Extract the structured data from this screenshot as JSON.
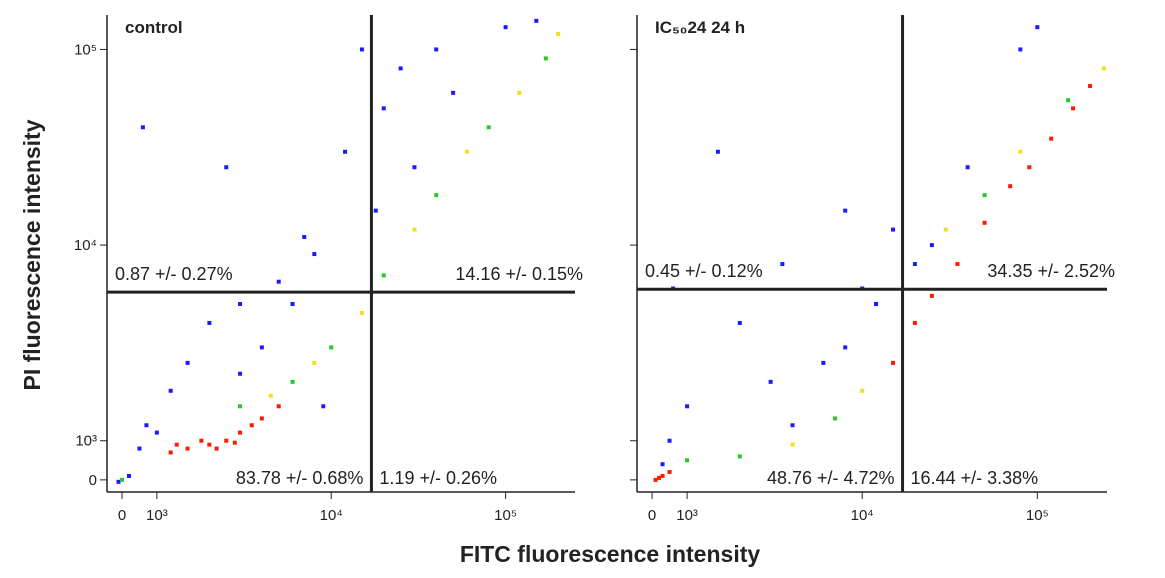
{
  "figure": {
    "xlabel": "FITC fluorescence intensity",
    "ylabel": "PI fluorescence intensity"
  },
  "chart_data": [
    {
      "type": "scatter",
      "title": "control",
      "xlim": [
        -430,
        250000
      ],
      "ylim": [
        -310,
        150000
      ],
      "scale": "logicle",
      "xticks": [
        {
          "value": 0,
          "label": "0"
        },
        {
          "value": 1000,
          "label": "10³"
        },
        {
          "value": 10000,
          "label": "10⁴"
        },
        {
          "value": 100000,
          "label": "10⁵"
        }
      ],
      "yticks": [
        {
          "value": 0,
          "label": "0"
        },
        {
          "value": 1000,
          "label": "10³"
        },
        {
          "value": 10000,
          "label": "10⁴"
        },
        {
          "value": 100000,
          "label": "10⁵"
        }
      ],
      "gate": {
        "x": 17000,
        "y": 5750
      },
      "quadrants": {
        "upper_left": "0.87 +/- 0.27%",
        "upper_right": "14.16 +/- 0.15%",
        "lower_left": "83.78 +/- 0.68%",
        "lower_right": "1.19 +/- 0.26%"
      },
      "series": [
        {
          "color": "#1a1aff",
          "x": [
            700,
            1500,
            2000,
            1200,
            3000,
            4000,
            6000,
            8000,
            2500,
            600,
            12000,
            20000,
            25000,
            40000,
            50000,
            100000,
            150000,
            18000,
            9000,
            1000,
            5000,
            3000,
            15000,
            30000,
            500,
            -100,
            200,
            7000
          ],
          "y": [
            1200,
            2500,
            4000,
            1800,
            2200,
            3000,
            5000,
            9000,
            25000,
            40000,
            30000,
            50000,
            80000,
            100000,
            60000,
            130000,
            140000,
            15000,
            1500,
            1100,
            6500,
            5000,
            100000,
            25000,
            800,
            -50,
            100,
            11000
          ]
        },
        {
          "color": "#22cc22",
          "x": [
            6000,
            10000,
            20000,
            40000,
            80000,
            170000,
            0,
            3000
          ],
          "y": [
            2000,
            3000,
            7000,
            18000,
            40000,
            90000,
            0,
            1500
          ]
        },
        {
          "color": "#f0e020",
          "x": [
            8000,
            15000,
            30000,
            60000,
            120000,
            200000,
            4500
          ],
          "y": [
            2500,
            4500,
            12000,
            30000,
            60000,
            120000,
            1700
          ]
        },
        {
          "color": "#ff1a00",
          "x": [
            1500,
            2000,
            2500,
            3000,
            4000,
            1200,
            1800,
            3500,
            2200,
            5000,
            1300,
            2800
          ],
          "y": [
            800,
            900,
            1000,
            1100,
            1300,
            700,
            1000,
            1200,
            800,
            1500,
            900,
            950
          ]
        }
      ]
    },
    {
      "type": "scatter",
      "title": "IC₅₀24 24 h",
      "xlim": [
        -430,
        250000
      ],
      "ylim": [
        -310,
        150000
      ],
      "scale": "logicle",
      "xticks": [
        {
          "value": 0,
          "label": "0"
        },
        {
          "value": 1000,
          "label": "10³"
        },
        {
          "value": 10000,
          "label": "10⁴"
        },
        {
          "value": 100000,
          "label": "10⁵"
        }
      ],
      "gate": {
        "x": 17000,
        "y": 5950
      },
      "quadrants": {
        "upper_left": "0.45 +/- 0.12%",
        "upper_right": "34.35 +/- 2.52%",
        "lower_left": "48.76 +/- 4.72%",
        "lower_right": "16.44 +/- 3.38%"
      },
      "series": [
        {
          "color": "#1a1aff",
          "x": [
            1000,
            3000,
            500,
            8000,
            12000,
            20000,
            25000,
            2000,
            600,
            1500,
            3500,
            10000,
            8000,
            100000,
            80000,
            40000,
            4000,
            15000,
            300,
            6000
          ],
          "y": [
            1500,
            2000,
            1000,
            3000,
            5000,
            8000,
            10000,
            4000,
            6000,
            30000,
            8000,
            6000,
            15000,
            130000,
            100000,
            25000,
            1200,
            12000,
            400,
            2500
          ]
        },
        {
          "color": "#22cc22",
          "x": [
            2000,
            7000,
            50000,
            150000,
            1000
          ],
          "y": [
            600,
            1300,
            18000,
            55000,
            500
          ]
        },
        {
          "color": "#f0e020",
          "x": [
            4000,
            10000,
            30000,
            80000,
            240000
          ],
          "y": [
            900,
            1800,
            12000,
            30000,
            80000
          ]
        },
        {
          "color": "#ff1a00",
          "x": [
            100,
            300,
            500,
            200,
            15000,
            20000,
            25000,
            35000,
            50000,
            70000,
            90000,
            120000,
            160000,
            200000
          ],
          "y": [
            0,
            100,
            200,
            50,
            2500,
            4000,
            5500,
            8000,
            13000,
            20000,
            25000,
            35000,
            50000,
            65000
          ]
        }
      ]
    }
  ]
}
